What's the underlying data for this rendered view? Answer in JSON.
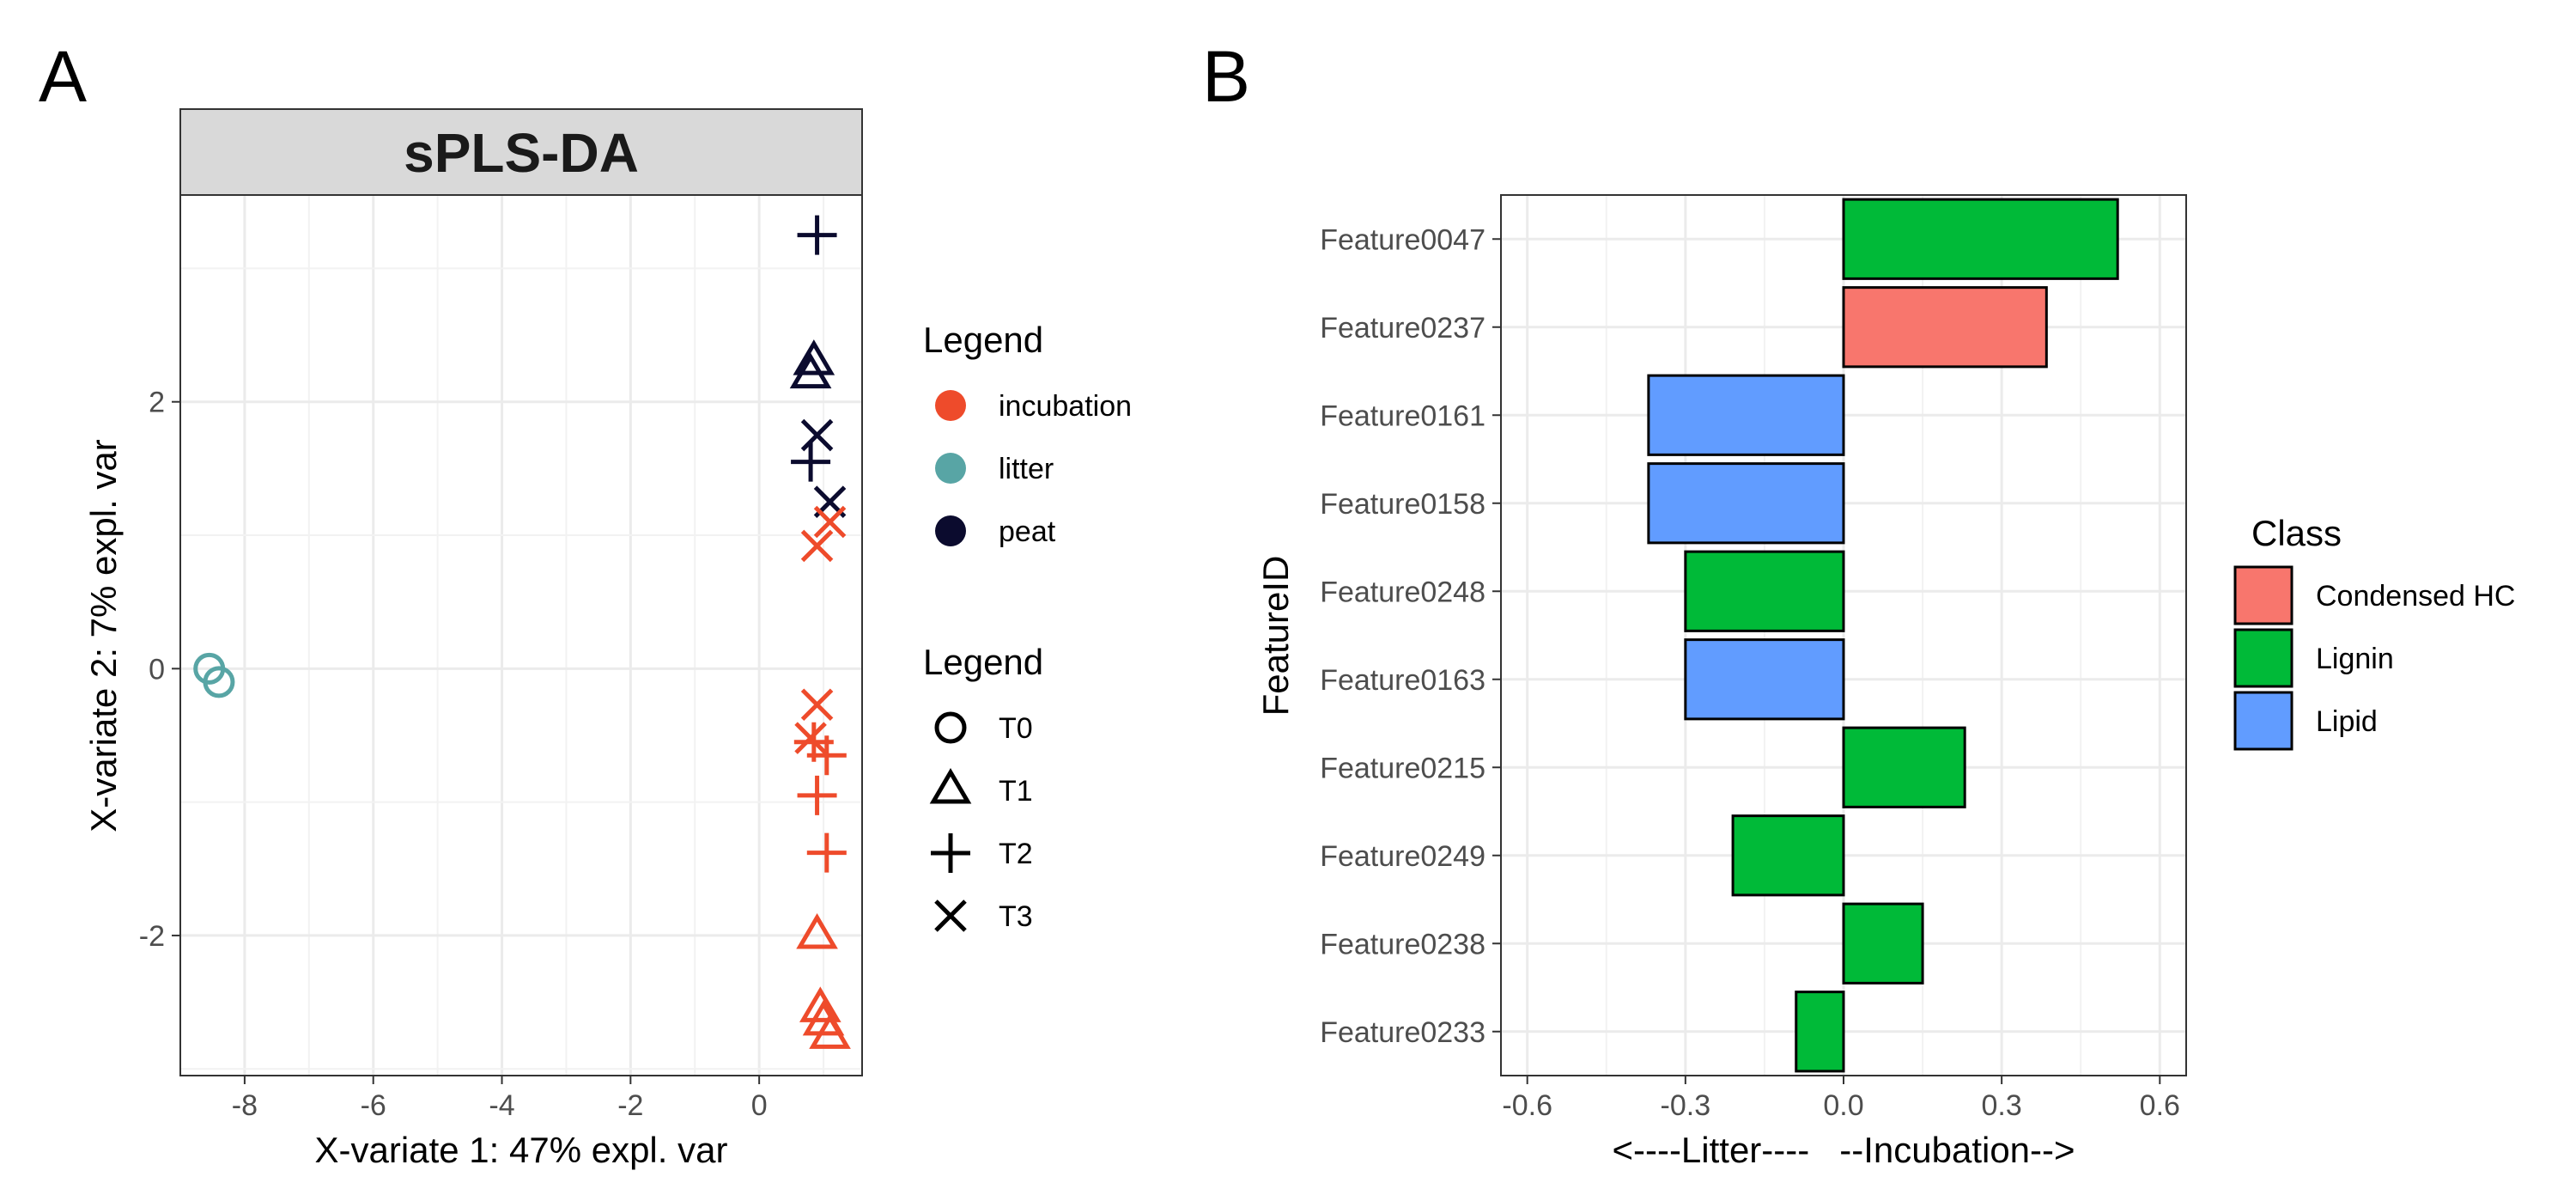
{
  "panels": {
    "a": {
      "letter": "A"
    },
    "b": {
      "letter": "B"
    }
  },
  "colors": {
    "incubation": "#EE4B2B",
    "litter": "#58A5A5",
    "peat": "#0B0B2E",
    "Condensed HC": "#F8766D",
    "Lignin": "#00BA38",
    "Lipid": "#619CFF"
  },
  "chart_data": [
    {
      "type": "scatter",
      "title": "sPLS-DA",
      "xlabel": "X-variate 1: 47% expl. var",
      "ylabel": "X-variate 2: 7% expl. var",
      "xlim": [
        -9.0,
        1.6
      ],
      "ylim": [
        -3.05,
        3.55
      ],
      "xticks": [
        -8,
        -6,
        -4,
        -2,
        0
      ],
      "yticks": [
        -2,
        0,
        2
      ],
      "grid": true,
      "legend_color": {
        "title": "Legend",
        "entries": [
          {
            "label": "incubation",
            "key": "incubation"
          },
          {
            "label": "litter",
            "key": "litter"
          },
          {
            "label": "peat",
            "key": "peat"
          }
        ]
      },
      "legend_shape": {
        "title": "Legend",
        "entries": [
          {
            "label": "T0",
            "shape": "circle"
          },
          {
            "label": "T1",
            "shape": "triangle"
          },
          {
            "label": "T2",
            "shape": "plus"
          },
          {
            "label": "T3",
            "shape": "cross"
          }
        ]
      },
      "points": [
        {
          "x": -8.55,
          "y": 0.0,
          "group": "litter",
          "shape": "circle"
        },
        {
          "x": -8.4,
          "y": -0.1,
          "group": "litter",
          "shape": "circle"
        },
        {
          "x": 0.9,
          "y": 3.25,
          "group": "peat",
          "shape": "plus"
        },
        {
          "x": 0.85,
          "y": 2.3,
          "group": "peat",
          "shape": "triangle"
        },
        {
          "x": 0.8,
          "y": 2.2,
          "group": "peat",
          "shape": "triangle"
        },
        {
          "x": 0.9,
          "y": 1.75,
          "group": "peat",
          "shape": "cross"
        },
        {
          "x": 0.8,
          "y": 1.55,
          "group": "peat",
          "shape": "plus"
        },
        {
          "x": 1.1,
          "y": 1.25,
          "group": "peat",
          "shape": "cross"
        },
        {
          "x": 1.1,
          "y": 1.1,
          "group": "incubation",
          "shape": "cross"
        },
        {
          "x": 0.9,
          "y": 0.92,
          "group": "incubation",
          "shape": "cross"
        },
        {
          "x": 0.9,
          "y": -0.27,
          "group": "incubation",
          "shape": "cross"
        },
        {
          "x": 0.8,
          "y": -0.52,
          "group": "incubation",
          "shape": "cross"
        },
        {
          "x": 0.85,
          "y": -0.55,
          "group": "incubation",
          "shape": "plus"
        },
        {
          "x": 1.05,
          "y": -0.65,
          "group": "incubation",
          "shape": "plus"
        },
        {
          "x": 0.9,
          "y": -0.95,
          "group": "incubation",
          "shape": "plus"
        },
        {
          "x": 1.05,
          "y": -1.38,
          "group": "incubation",
          "shape": "plus"
        },
        {
          "x": 0.9,
          "y": -2.0,
          "group": "incubation",
          "shape": "triangle"
        },
        {
          "x": 0.95,
          "y": -2.55,
          "group": "incubation",
          "shape": "triangle"
        },
        {
          "x": 1.0,
          "y": -2.65,
          "group": "incubation",
          "shape": "triangle"
        },
        {
          "x": 1.1,
          "y": -2.75,
          "group": "incubation",
          "shape": "triangle"
        }
      ]
    },
    {
      "type": "bar",
      "orientation": "horizontal",
      "ylabel": "FeatureID",
      "xlabel": "<----Litter----   --Incubation-->",
      "xlim": [
        -0.65,
        0.65
      ],
      "xticks": [
        -0.6,
        -0.3,
        0.0,
        0.3,
        0.6
      ],
      "xtick_labels": [
        "-0.6",
        "-0.3",
        "0.0",
        "0.3",
        "0.6"
      ],
      "grid": true,
      "categories": [
        "Feature0047",
        "Feature0237",
        "Feature0161",
        "Feature0158",
        "Feature0248",
        "Feature0163",
        "Feature0215",
        "Feature0249",
        "Feature0238",
        "Feature0233"
      ],
      "values": [
        0.52,
        0.385,
        -0.37,
        -0.37,
        -0.3,
        -0.3,
        0.23,
        -0.21,
        0.15,
        -0.09
      ],
      "classes": [
        "Lignin",
        "Condensed HC",
        "Lipid",
        "Lipid",
        "Lignin",
        "Lipid",
        "Lignin",
        "Lignin",
        "Lignin",
        "Lignin"
      ],
      "legend": {
        "title": "Class",
        "entries": [
          "Condensed HC",
          "Lignin",
          "Lipid"
        ]
      }
    }
  ]
}
